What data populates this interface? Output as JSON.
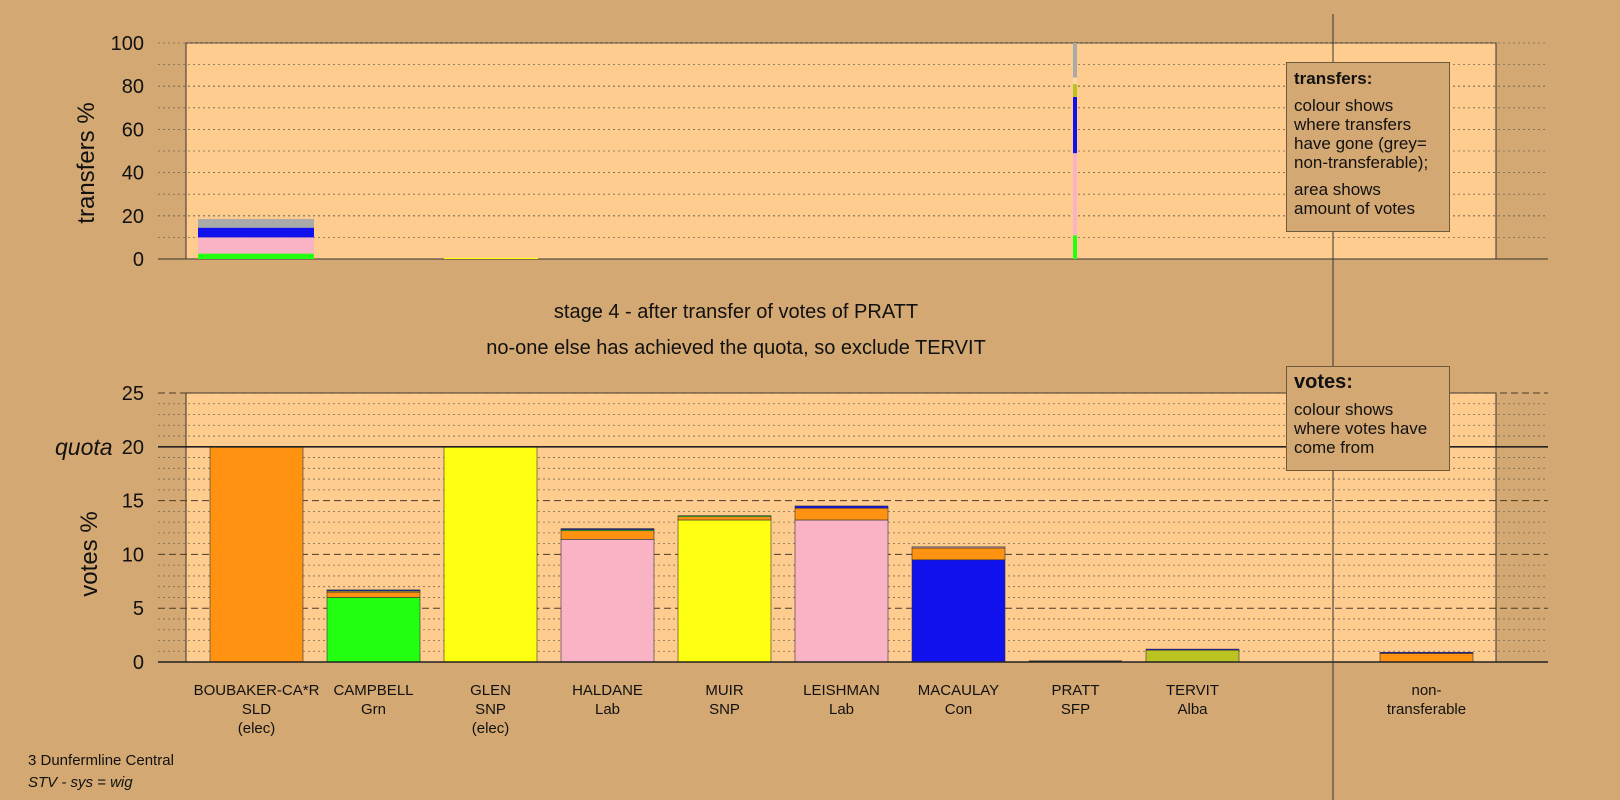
{
  "chart_data": [
    {
      "type": "bar",
      "stacked": true,
      "ylabel": "transfers %",
      "ylim": [
        0,
        100
      ],
      "yticks": [
        0,
        20,
        40,
        60,
        80,
        100
      ],
      "categories": [
        "BOUBAKER-CA*R",
        "CAMPBELL",
        "GLEN",
        "HALDANE",
        "MUIR",
        "LEISHMAN",
        "MACAULAY",
        "PRATT",
        "TERVIT",
        "non-transferable"
      ],
      "series": [
        {
          "color": "#22ff11",
          "values": [
            2.5,
            0,
            0,
            0,
            0,
            0,
            0,
            11,
            0,
            0
          ]
        },
        {
          "color": "#f9b3c4",
          "values": [
            7.5,
            0,
            0,
            0,
            0,
            0,
            0,
            38,
            0,
            0
          ]
        },
        {
          "color": "#ffff11",
          "values": [
            0,
            0,
            0.5,
            0,
            0,
            0,
            0,
            0,
            0,
            0
          ]
        },
        {
          "color": "#1111ee",
          "values": [
            4.5,
            0,
            0,
            0,
            0,
            0,
            0,
            26,
            0,
            0
          ]
        },
        {
          "color": "#bbc322",
          "values": [
            0,
            0,
            0,
            0,
            0,
            0,
            0,
            6,
            0,
            0
          ]
        },
        {
          "color": "#ffd8a8",
          "values": [
            0,
            0,
            0,
            0,
            0,
            0,
            0,
            3,
            0,
            0
          ]
        },
        {
          "color": "#aaaaaa",
          "values": [
            4,
            0,
            0,
            0,
            0,
            0,
            0,
            16,
            0,
            0
          ]
        }
      ],
      "legend": {
        "title": "transfers:",
        "line1": "colour shows where transfers have gone (grey= non-transferable);",
        "line2": "area shows amount of votes"
      }
    },
    {
      "type": "bar",
      "stacked": true,
      "ylabel": "votes %",
      "ylim": [
        0,
        25
      ],
      "yticks": [
        0,
        5,
        10,
        15,
        20,
        25
      ],
      "quota": 20,
      "quota_label": "quota",
      "categories": [
        {
          "name": "BOUBAKER-CA*R",
          "party": "SLD",
          "note": "(elec)"
        },
        {
          "name": "CAMPBELL",
          "party": "Grn",
          "note": ""
        },
        {
          "name": "GLEN",
          "party": "SNP",
          "note": "(elec)"
        },
        {
          "name": "HALDANE",
          "party": "Lab",
          "note": ""
        },
        {
          "name": "MUIR",
          "party": "SNP",
          "note": ""
        },
        {
          "name": "LEISHMAN",
          "party": "Lab",
          "note": ""
        },
        {
          "name": "MACAULAY",
          "party": "Con",
          "note": ""
        },
        {
          "name": "PRATT",
          "party": "SFP",
          "note": ""
        },
        {
          "name": "TERVIT",
          "party": "Alba",
          "note": ""
        },
        {
          "name": "",
          "party": "",
          "note": ""
        },
        {
          "name": "non-",
          "party": "transferable",
          "note": ""
        }
      ],
      "bars": [
        [
          {
            "value": 20.0,
            "color": "#ff9211"
          }
        ],
        [
          {
            "value": 6.0,
            "color": "#22ff11"
          },
          {
            "value": 0.5,
            "color": "#ff9211"
          },
          {
            "value": 0.1,
            "color": "#ffff11"
          },
          {
            "value": 0.1,
            "color": "#1111ee"
          }
        ],
        [
          {
            "value": 20.0,
            "color": "#ffff11"
          }
        ],
        [
          {
            "value": 11.4,
            "color": "#f9b3c4"
          },
          {
            "value": 0.8,
            "color": "#ff9211"
          },
          {
            "value": 0.1,
            "color": "#22ff11"
          },
          {
            "value": 0.1,
            "color": "#1111ee"
          }
        ],
        [
          {
            "value": 13.2,
            "color": "#ffff11"
          },
          {
            "value": 0.3,
            "color": "#ff9211"
          },
          {
            "value": 0.1,
            "color": "#22ff11"
          }
        ],
        [
          {
            "value": 13.2,
            "color": "#f9b3c4"
          },
          {
            "value": 1.1,
            "color": "#ff9211"
          },
          {
            "value": 0.2,
            "color": "#1111ee"
          }
        ],
        [
          {
            "value": 9.5,
            "color": "#1111ee"
          },
          {
            "value": 1.1,
            "color": "#ff9211"
          },
          {
            "value": 0.1,
            "color": "#f9b3c4"
          }
        ],
        [],
        [
          {
            "value": 1.1,
            "color": "#bbc322"
          },
          {
            "value": 0.1,
            "color": "#1111ee"
          }
        ],
        [],
        [
          {
            "value": 0.8,
            "color": "#ff9211"
          },
          {
            "value": 0.1,
            "color": "#1111ee"
          }
        ]
      ],
      "legend": {
        "title": "votes:",
        "line1": "colour shows where votes have come from"
      }
    }
  ],
  "stage_title": "stage 4 - after transfer of votes of PRATT",
  "stage_subtitle": "no-one else has achieved the quota, so exclude TERVIT",
  "footer": {
    "name": "3 Dunfermline Central",
    "system": "STV - sys = wig"
  },
  "colors": {
    "background": "#d4a872",
    "plot_background": "#ffcc90"
  }
}
